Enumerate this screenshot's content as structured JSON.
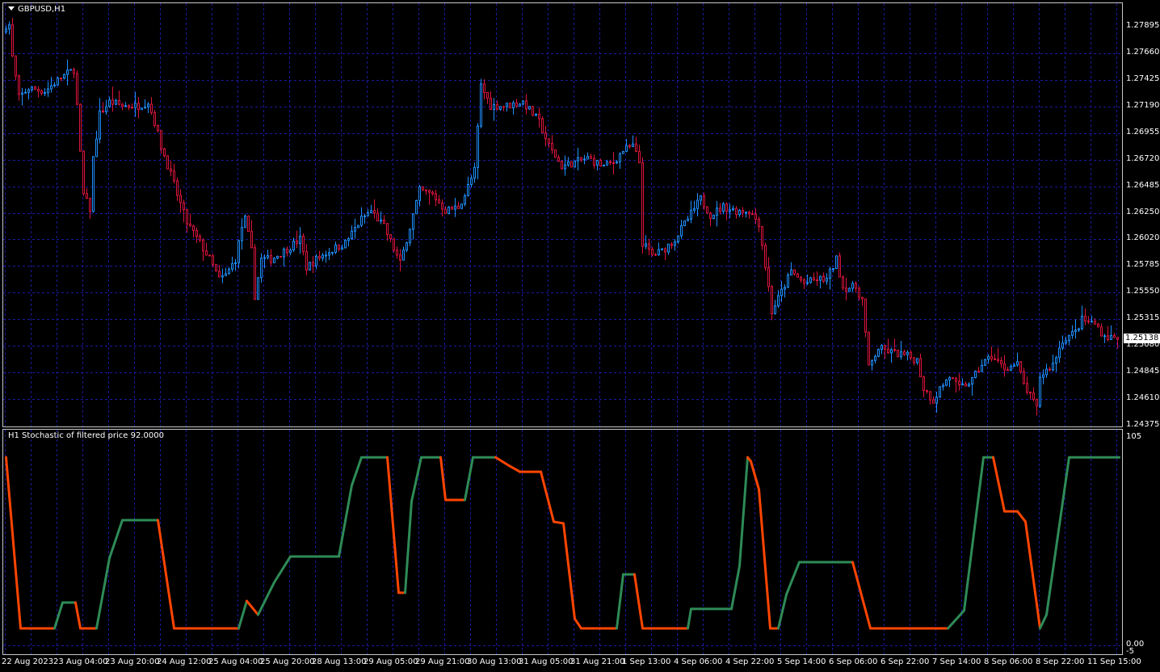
{
  "window": {
    "symbol_title": "GBPUSD,H1",
    "menu_icon": "triangle-down-icon"
  },
  "indicator": {
    "label": "H1 Stochastic of filtered price 92.0000"
  },
  "colors": {
    "background": "#000000",
    "grid": "#1a1aa0",
    "bull": "#1e90ff",
    "bear": "#dc143c",
    "stoch_up": "#2e8b57",
    "stoch_down": "#ff4500",
    "border": "#c8c8c8"
  },
  "chart_data": [
    {
      "type": "candlestick",
      "symbol": "GBPUSD",
      "timeframe": "H1",
      "ylim": [
        1.24375,
        1.27895
      ],
      "y_ticks": [
        "1.27895",
        "1.27660",
        "1.27425",
        "1.27190",
        "1.26955",
        "1.26720",
        "1.26485",
        "1.26250",
        "1.26020",
        "1.25785",
        "1.25550",
        "1.25315",
        "1.25080",
        "1.24845",
        "1.24610",
        "1.24375"
      ],
      "last_price": "1.25138",
      "grid": true,
      "close_path_by_bar": [
        [
          1,
          1.27909
        ],
        [
          2,
          1.27624
        ],
        [
          4,
          1.27268
        ],
        [
          7,
          1.27353
        ],
        [
          12,
          1.27325
        ],
        [
          17,
          1.27446
        ],
        [
          21,
          1.27517
        ],
        [
          22,
          1.27197
        ],
        [
          23,
          1.26769
        ],
        [
          24,
          1.26413
        ],
        [
          26,
          1.26285
        ],
        [
          27,
          1.26734
        ],
        [
          29,
          1.27126
        ],
        [
          32,
          1.27232
        ],
        [
          36,
          1.27197
        ],
        [
          41,
          1.27197
        ],
        [
          44,
          1.27232
        ],
        [
          46,
          1.27054
        ],
        [
          48,
          1.26841
        ],
        [
          51,
          1.26591
        ],
        [
          53,
          1.26413
        ],
        [
          56,
          1.26164
        ],
        [
          60,
          1.25986
        ],
        [
          63,
          1.25843
        ],
        [
          66,
          1.25665
        ],
        [
          68,
          1.25701
        ],
        [
          71,
          1.25843
        ],
        [
          73,
          1.26128
        ],
        [
          74,
          1.26199
        ],
        [
          76,
          1.25914
        ],
        [
          77,
          1.25522
        ],
        [
          79,
          1.25843
        ],
        [
          82,
          1.25843
        ],
        [
          86,
          1.25914
        ],
        [
          91,
          1.26021
        ],
        [
          93,
          1.25772
        ],
        [
          96,
          1.25843
        ],
        [
          100,
          1.25914
        ],
        [
          105,
          1.25986
        ],
        [
          110,
          1.26199
        ],
        [
          113,
          1.26271
        ],
        [
          117,
          1.26128
        ],
        [
          122,
          1.25807
        ],
        [
          125,
          1.26128
        ],
        [
          128,
          1.26449
        ],
        [
          132,
          1.26413
        ],
        [
          136,
          1.26271
        ],
        [
          140,
          1.26306
        ],
        [
          142,
          1.26413
        ],
        [
          145,
          1.26627
        ],
        [
          147,
          1.27375
        ],
        [
          150,
          1.27197
        ],
        [
          155,
          1.27197
        ],
        [
          160,
          1.27232
        ],
        [
          165,
          1.27054
        ],
        [
          168,
          1.26841
        ],
        [
          172,
          1.26662
        ],
        [
          176,
          1.26698
        ],
        [
          180,
          1.26734
        ],
        [
          185,
          1.26662
        ],
        [
          188,
          1.26698
        ],
        [
          191,
          1.26805
        ],
        [
          194,
          1.26841
        ],
        [
          196,
          1.26698
        ],
        [
          197,
          1.25986
        ],
        [
          200,
          1.25879
        ],
        [
          203,
          1.25914
        ],
        [
          207,
          1.26021
        ],
        [
          211,
          1.26199
        ],
        [
          215,
          1.26377
        ],
        [
          218,
          1.26235
        ],
        [
          222,
          1.26306
        ],
        [
          226,
          1.26271
        ],
        [
          230,
          1.26271
        ],
        [
          233,
          1.26164
        ],
        [
          236,
          1.25594
        ],
        [
          237,
          1.2538
        ],
        [
          240,
          1.25558
        ],
        [
          243,
          1.25736
        ],
        [
          247,
          1.25629
        ],
        [
          251,
          1.25665
        ],
        [
          254,
          1.25665
        ],
        [
          257,
          1.25843
        ],
        [
          259,
          1.25594
        ],
        [
          263,
          1.25594
        ],
        [
          265,
          1.25487
        ],
        [
          267,
          1.24881
        ],
        [
          270,
          1.25059
        ],
        [
          274,
          1.25024
        ],
        [
          279,
          1.24988
        ],
        [
          282,
          1.24953
        ],
        [
          284,
          1.24703
        ],
        [
          287,
          1.24596
        ],
        [
          289,
          1.24703
        ],
        [
          292,
          1.2481
        ],
        [
          295,
          1.24703
        ],
        [
          299,
          1.24774
        ],
        [
          302,
          1.24917
        ],
        [
          305,
          1.24988
        ],
        [
          309,
          1.24881
        ],
        [
          313,
          1.24917
        ],
        [
          315,
          1.24739
        ],
        [
          319,
          1.24525
        ],
        [
          320,
          1.2481
        ],
        [
          324,
          1.24917
        ],
        [
          327,
          1.25131
        ],
        [
          331,
          1.25202
        ],
        [
          333,
          1.25309
        ],
        [
          337,
          1.25273
        ],
        [
          340,
          1.25166
        ],
        [
          344,
          1.25138
        ]
      ]
    },
    {
      "type": "line",
      "name": "Stochastic of filtered price",
      "ylim": [
        0,
        105
      ],
      "y_ticks": [
        "105",
        "0.00",
        "-5"
      ],
      "current_value": "92.0000",
      "values_by_bar": [
        [
          0,
          94
        ],
        [
          4.5,
          8.5
        ],
        [
          15,
          8.5
        ],
        [
          17.5,
          21.4
        ],
        [
          21.5,
          21.4
        ],
        [
          23,
          8.5
        ],
        [
          28,
          8.5
        ],
        [
          32,
          43.6
        ],
        [
          36,
          62.6
        ],
        [
          47,
          62.6
        ],
        [
          52,
          8.5
        ],
        [
          72,
          8.5
        ],
        [
          74.5,
          22.2
        ],
        [
          78,
          15.3
        ],
        [
          83,
          31.5
        ],
        [
          88,
          44.4
        ],
        [
          103,
          44.4
        ],
        [
          107,
          80
        ],
        [
          110,
          94
        ],
        [
          118,
          94
        ],
        [
          121.5,
          26.3
        ],
        [
          123.5,
          26.3
        ],
        [
          125.5,
          72
        ],
        [
          128.5,
          94
        ],
        [
          134.5,
          94
        ],
        [
          136,
          72.7
        ],
        [
          142,
          72.7
        ],
        [
          144.5,
          94
        ],
        [
          151.5,
          94
        ],
        [
          155.5,
          90
        ],
        [
          159,
          86.8
        ],
        [
          165.5,
          86.8
        ],
        [
          169.5,
          61.8
        ],
        [
          172.5,
          61
        ],
        [
          176,
          13.3
        ],
        [
          178,
          8.5
        ],
        [
          189,
          8.5
        ],
        [
          191,
          35.5
        ],
        [
          194.5,
          35.5
        ],
        [
          197,
          8.5
        ],
        [
          211,
          8.5
        ],
        [
          212,
          18.2
        ],
        [
          224.5,
          18.2
        ],
        [
          227,
          39.6
        ],
        [
          229.5,
          94
        ],
        [
          230.5,
          92
        ],
        [
          233,
          78
        ],
        [
          236.5,
          8.5
        ],
        [
          239,
          8.5
        ],
        [
          241.5,
          25.4
        ],
        [
          245.5,
          41.6
        ],
        [
          262,
          41.6
        ],
        [
          267.5,
          8.5
        ],
        [
          291.5,
          8.5
        ],
        [
          296.5,
          17.4
        ],
        [
          302.5,
          94
        ],
        [
          305.5,
          94
        ],
        [
          309,
          67
        ],
        [
          313,
          67
        ],
        [
          315.5,
          61.8
        ],
        [
          320,
          8.5
        ],
        [
          322,
          15.3
        ],
        [
          329,
          94
        ],
        [
          344.5,
          94
        ]
      ]
    }
  ],
  "time_axis": {
    "labels": [
      "22 Aug 2023",
      "23 Aug 04:00",
      "23 Aug 20:00",
      "24 Aug 12:00",
      "25 Aug 04:00",
      "25 Aug 20:00",
      "28 Aug 13:00",
      "29 Aug 05:00",
      "29 Aug 21:00",
      "30 Aug 13:00",
      "31 Aug 05:00",
      "31 Aug 21:00",
      "1 Sep 13:00",
      "4 Sep 06:00",
      "4 Sep 22:00",
      "5 Sep 14:00",
      "6 Sep 06:00",
      "6 Sep 22:00",
      "7 Sep 14:00",
      "8 Sep 06:00",
      "8 Sep 22:00",
      "11 Sep 15:00"
    ]
  }
}
